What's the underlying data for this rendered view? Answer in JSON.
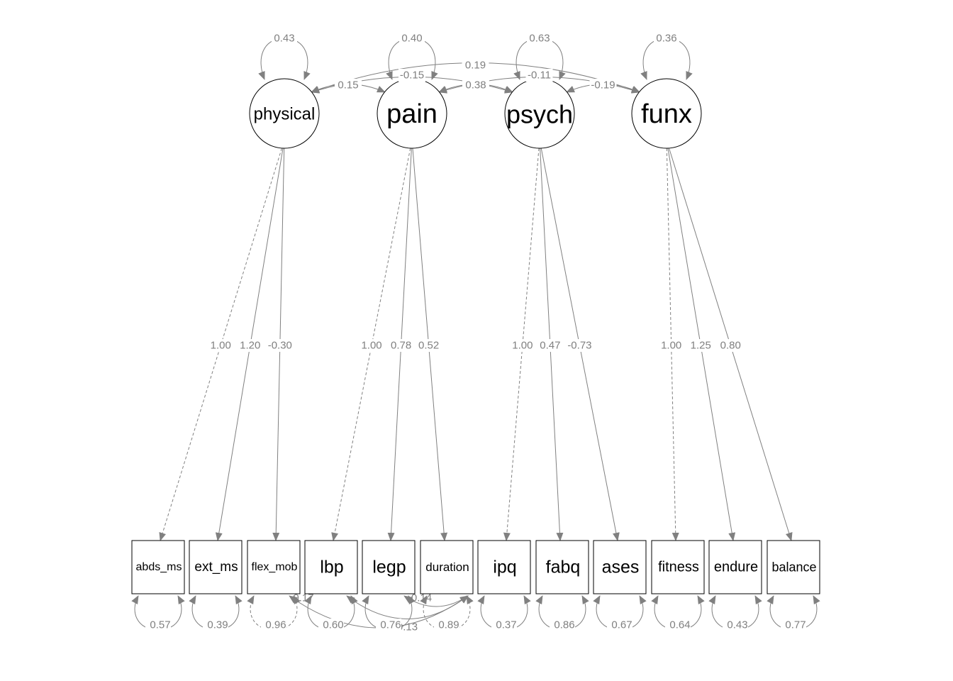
{
  "colors": {
    "edge": "#808080",
    "node_stroke": "#000000",
    "background": "#ffffff"
  },
  "latents": [
    {
      "id": "physical",
      "label": "physical",
      "variance": "0.43"
    },
    {
      "id": "pain",
      "label": "pain",
      "variance": "0.40"
    },
    {
      "id": "psych",
      "label": "psych",
      "variance": "0.63"
    },
    {
      "id": "funx",
      "label": "funx",
      "variance": "0.36"
    }
  ],
  "indicators": [
    {
      "id": "abds_ms",
      "label": "abds_ms",
      "variance": "0.57"
    },
    {
      "id": "ext_ms",
      "label": "ext_ms",
      "variance": "0.39"
    },
    {
      "id": "flex_mob",
      "label": "flex_mob",
      "variance": "0.96"
    },
    {
      "id": "lbp",
      "label": "lbp",
      "variance": "0.60"
    },
    {
      "id": "legp",
      "label": "legp",
      "variance": "0.76"
    },
    {
      "id": "duration",
      "label": "duration",
      "variance": "0.89"
    },
    {
      "id": "ipq",
      "label": "ipq",
      "variance": "0.37"
    },
    {
      "id": "fabq",
      "label": "fabq",
      "variance": "0.86"
    },
    {
      "id": "ases",
      "label": "ases",
      "variance": "0.67"
    },
    {
      "id": "fitness",
      "label": "fitness",
      "variance": "0.64"
    },
    {
      "id": "endure",
      "label": "endure",
      "variance": "0.43"
    },
    {
      "id": "balance",
      "label": "balance",
      "variance": "0.77"
    }
  ],
  "loadings": [
    {
      "from": "physical",
      "to": "abds_ms",
      "label": "1.00",
      "fixed": true
    },
    {
      "from": "physical",
      "to": "ext_ms",
      "label": "1.20",
      "fixed": false
    },
    {
      "from": "physical",
      "to": "flex_mob",
      "label": "-0.30",
      "fixed": false
    },
    {
      "from": "pain",
      "to": "lbp",
      "label": "1.00",
      "fixed": true
    },
    {
      "from": "pain",
      "to": "legp",
      "label": "0.78",
      "fixed": false
    },
    {
      "from": "pain",
      "to": "duration",
      "label": "0.52",
      "fixed": false
    },
    {
      "from": "psych",
      "to": "ipq",
      "label": "1.00",
      "fixed": true
    },
    {
      "from": "psych",
      "to": "fabq",
      "label": "0.47",
      "fixed": false
    },
    {
      "from": "psych",
      "to": "ases",
      "label": "-0.73",
      "fixed": false
    },
    {
      "from": "funx",
      "to": "fitness",
      "label": "1.00",
      "fixed": true
    },
    {
      "from": "funx",
      "to": "endure",
      "label": "1.25",
      "fixed": false
    },
    {
      "from": "funx",
      "to": "balance",
      "label": "0.80",
      "fixed": false
    }
  ],
  "latent_covariances": [
    {
      "a": "physical",
      "b": "pain",
      "label": "0.15"
    },
    {
      "a": "physical",
      "b": "psych",
      "label": "-0.15"
    },
    {
      "a": "physical",
      "b": "funx",
      "label": "0.19"
    },
    {
      "a": "pain",
      "b": "psych",
      "label": "0.38"
    },
    {
      "a": "pain",
      "b": "funx",
      "label": "-0.11"
    },
    {
      "a": "psych",
      "b": "funx",
      "label": "-0.19"
    }
  ],
  "residual_covariances": [
    {
      "a": "flex_mob",
      "b": "duration",
      "label": "0.17"
    },
    {
      "a": "legp",
      "b": "duration",
      "label": "-0.14"
    },
    {
      "a": "lbp",
      "b": "duration",
      "label": "0.13"
    }
  ]
}
